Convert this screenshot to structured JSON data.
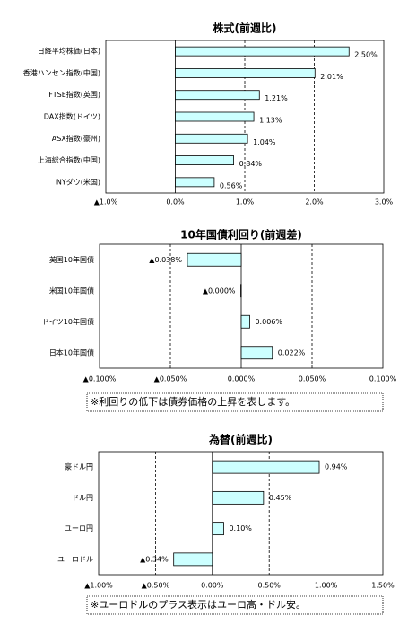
{
  "chart_data": [
    {
      "type": "bar",
      "orientation": "horizontal",
      "title": "株式(前週比)",
      "categories": [
        "日経平均株価(日本)",
        "香港ハンセン指数(中国)",
        "FTSE指数(英国)",
        "DAX指数(ドイツ)",
        "ASX指数(豪州)",
        "上海総合指数(中国)",
        "NYダウ(米国)"
      ],
      "values": [
        2.5,
        2.01,
        1.21,
        1.13,
        1.04,
        0.84,
        0.56
      ],
      "value_labels": [
        "2.50%",
        "2.01%",
        "1.21%",
        "1.13%",
        "1.04%",
        "0.84%",
        "0.56%"
      ],
      "color": "#ccffff",
      "negative_color": "#ff0000",
      "xlim": [
        -1,
        3
      ],
      "xticks": [
        {
          "value": -1,
          "label": "▲1.0%"
        },
        {
          "value": 0,
          "label": "0.0%"
        },
        {
          "value": 1,
          "label": "1.0%"
        },
        {
          "value": 2,
          "label": "2.0%"
        },
        {
          "value": 3,
          "label": "3.0%"
        }
      ],
      "grid": true
    },
    {
      "type": "bar",
      "orientation": "horizontal",
      "title": "10年国債利回り(前週差)",
      "categories": [
        "英国10年国債",
        "米国10年国債",
        "ドイツ10年国債",
        "日本10年国債"
      ],
      "values": [
        -0.038,
        -0.0003,
        0.006,
        0.022
      ],
      "value_labels": [
        "▲0.038%",
        "▲0.000%",
        "0.006%",
        "0.022%"
      ],
      "color": "#ccffff",
      "negative_color": "#ff0000",
      "xlim": [
        -0.1,
        0.1
      ],
      "xticks": [
        {
          "value": -0.1,
          "label": "▲0.100%"
        },
        {
          "value": -0.05,
          "label": "▲0.050%"
        },
        {
          "value": 0,
          "label": "0.000%"
        },
        {
          "value": 0.05,
          "label": "0.050%"
        },
        {
          "value": 0.1,
          "label": "0.100%"
        }
      ],
      "grid": true,
      "note": "※利回りの低下は債券価格の上昇を表します。"
    },
    {
      "type": "bar",
      "orientation": "horizontal",
      "title": "為替(前週比)",
      "categories": [
        "豪ドル円",
        "ドル円",
        "ユーロ円",
        "ユーロドル"
      ],
      "values": [
        0.94,
        0.45,
        0.1,
        -0.34
      ],
      "value_labels": [
        "0.94%",
        "0.45%",
        "0.10%",
        "▲0.34%"
      ],
      "color": "#ccffff",
      "negative_color": "#ff0000",
      "xlim": [
        -1,
        1.5
      ],
      "xticks": [
        {
          "value": -1,
          "label": "▲1.00%"
        },
        {
          "value": -0.5,
          "label": "▲0.50%"
        },
        {
          "value": 0,
          "label": "0.00%"
        },
        {
          "value": 0.5,
          "label": "0.50%"
        },
        {
          "value": 1,
          "label": "1.00%"
        },
        {
          "value": 1.5,
          "label": "1.50%"
        }
      ],
      "grid": true,
      "note": "※ユーロドルのプラス表示はユーロ高・ドル安。"
    }
  ]
}
